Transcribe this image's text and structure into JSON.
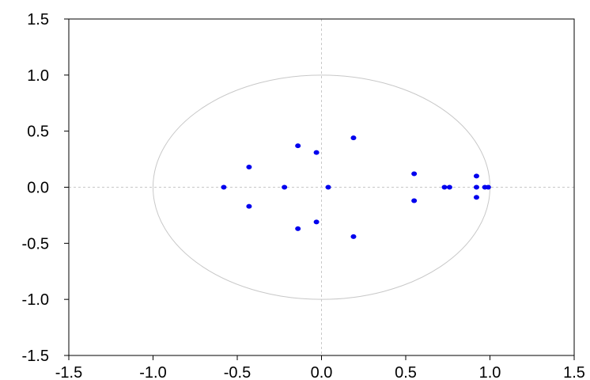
{
  "chart_data": {
    "type": "scatter",
    "title": "",
    "xlabel": "",
    "ylabel": "",
    "xlim": [
      -1.5,
      1.5
    ],
    "ylim": [
      -1.5,
      1.5
    ],
    "x_ticks": [
      "-1.5",
      "-1.0",
      "-0.5",
      "0.0",
      "0.5",
      "1.0",
      "1.5"
    ],
    "y_ticks": [
      "1.5",
      "1.0",
      "0.5",
      "0.0",
      "-0.5",
      "-1.0",
      "-1.5"
    ],
    "reference": {
      "unit_circle": true,
      "zero_axes": true
    },
    "grid": false,
    "colors": {
      "points": "#0000ee",
      "reference_lines": "#c8c8c8",
      "frame": "#000000"
    },
    "points": [
      {
        "x": -0.58,
        "y": 0.0
      },
      {
        "x": -0.43,
        "y": 0.18
      },
      {
        "x": -0.43,
        "y": -0.17
      },
      {
        "x": -0.22,
        "y": 0.0
      },
      {
        "x": -0.14,
        "y": 0.37
      },
      {
        "x": -0.14,
        "y": -0.37
      },
      {
        "x": -0.03,
        "y": 0.31
      },
      {
        "x": -0.03,
        "y": -0.31
      },
      {
        "x": 0.04,
        "y": 0.0
      },
      {
        "x": 0.19,
        "y": 0.44
      },
      {
        "x": 0.19,
        "y": -0.44
      },
      {
        "x": 0.55,
        "y": 0.12
      },
      {
        "x": 0.55,
        "y": -0.12
      },
      {
        "x": 0.73,
        "y": 0.0
      },
      {
        "x": 0.76,
        "y": 0.0
      },
      {
        "x": 0.92,
        "y": 0.1
      },
      {
        "x": 0.92,
        "y": 0.0
      },
      {
        "x": 0.92,
        "y": -0.09
      },
      {
        "x": 0.97,
        "y": 0.0
      },
      {
        "x": 0.99,
        "y": 0.0
      }
    ]
  }
}
